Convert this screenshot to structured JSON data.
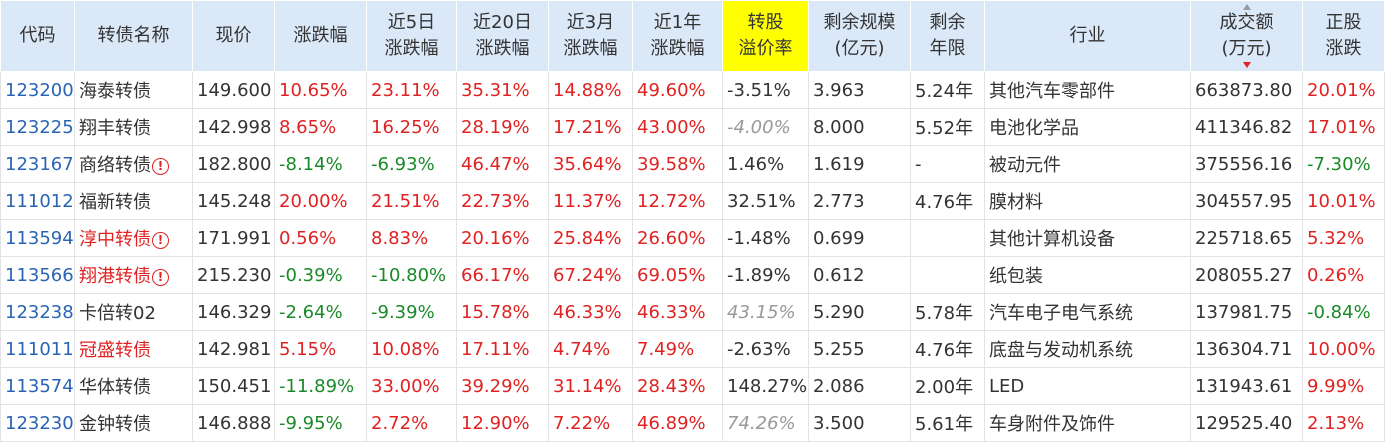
{
  "headers": [
    {
      "label": "代码"
    },
    {
      "label": "转债名称"
    },
    {
      "label": "现价"
    },
    {
      "label": "涨跌幅"
    },
    {
      "label": "近5日\n涨跌幅"
    },
    {
      "label": "近20日\n涨跌幅"
    },
    {
      "label": "近3月\n涨跌幅"
    },
    {
      "label": "近1年\n涨跌幅"
    },
    {
      "label": "转股\n溢价率",
      "highlight": true
    },
    {
      "label": "剩余规模\n(亿元)"
    },
    {
      "label": "剩余\n年限"
    },
    {
      "label": "行业"
    },
    {
      "label": "成交额\n(万元)",
      "sorted": "desc"
    },
    {
      "label": "正股\n涨跌"
    }
  ],
  "warn_icon": "!",
  "colors": {
    "up": "#e02222",
    "down": "#1a8a28",
    "code": "#2a64b4",
    "header_bg": "#dbe8f8",
    "highlight": "#ffff00"
  },
  "rows": [
    {
      "code": "123200",
      "name": "海泰转债",
      "price": "149.600",
      "chg": "10.65%",
      "chg5": "23.11%",
      "chg20": "35.31%",
      "chg3m": "14.88%",
      "chg1y": "49.60%",
      "premium": "-3.51%",
      "scale": "3.963",
      "years": "5.24年",
      "industry": "其他汽车零部件",
      "volume": "663873.80",
      "stock_chg": "20.01%"
    },
    {
      "code": "123225",
      "name": "翔丰转债",
      "price": "142.998",
      "chg": "8.65%",
      "chg5": "16.25%",
      "chg20": "28.19%",
      "chg3m": "17.21%",
      "chg1y": "43.00%",
      "premium": "-4.00%",
      "premium_gray": true,
      "scale": "8.000",
      "years": "5.52年",
      "industry": "电池化学品",
      "volume": "411346.82",
      "stock_chg": "17.01%"
    },
    {
      "code": "123167",
      "name": "商络转债",
      "warn": true,
      "price": "182.800",
      "chg": "-8.14%",
      "chg5": "-6.93%",
      "chg20": "46.47%",
      "chg3m": "35.64%",
      "chg1y": "39.58%",
      "premium": "1.46%",
      "scale": "1.619",
      "years": "-",
      "industry": "被动元件",
      "volume": "375556.16",
      "stock_chg": "-7.30%"
    },
    {
      "code": "111012",
      "name": "福新转债",
      "price": "145.248",
      "chg": "20.00%",
      "chg5": "21.51%",
      "chg20": "22.73%",
      "chg3m": "11.37%",
      "chg1y": "12.72%",
      "premium": "32.51%",
      "scale": "2.773",
      "years": "4.76年",
      "industry": "膜材料",
      "volume": "304557.95",
      "stock_chg": "10.01%"
    },
    {
      "code": "113594",
      "name": "淳中转债",
      "name_red": true,
      "warn": true,
      "price": "171.991",
      "chg": "0.56%",
      "chg5": "8.83%",
      "chg20": "20.16%",
      "chg3m": "25.84%",
      "chg1y": "26.60%",
      "premium": "-1.48%",
      "scale": "0.699",
      "years": "",
      "industry": "其他计算机设备",
      "volume": "225718.65",
      "stock_chg": "5.32%"
    },
    {
      "code": "113566",
      "name": "翔港转债",
      "name_red": true,
      "warn": true,
      "price": "215.230",
      "chg": "-0.39%",
      "chg5": "-10.80%",
      "chg20": "66.17%",
      "chg3m": "67.24%",
      "chg1y": "69.05%",
      "premium": "-1.89%",
      "scale": "0.612",
      "years": "",
      "industry": "纸包装",
      "volume": "208055.27",
      "stock_chg": "0.26%"
    },
    {
      "code": "123238",
      "name": "卡倍转02",
      "price": "146.329",
      "chg": "-2.64%",
      "chg5": "-9.39%",
      "chg20": "15.78%",
      "chg3m": "46.33%",
      "chg1y": "46.33%",
      "premium": "43.15%",
      "premium_gray": true,
      "scale": "5.290",
      "years": "5.78年",
      "industry": "汽车电子电气系统",
      "volume": "137981.75",
      "stock_chg": "-0.84%"
    },
    {
      "code": "111011",
      "name": "冠盛转债",
      "name_red": true,
      "price": "142.981",
      "chg": "5.15%",
      "chg5": "10.08%",
      "chg20": "17.11%",
      "chg3m": "4.74%",
      "chg1y": "7.49%",
      "premium": "-2.63%",
      "scale": "5.255",
      "years": "4.76年",
      "industry": "底盘与发动机系统",
      "volume": "136304.71",
      "stock_chg": "10.00%"
    },
    {
      "code": "113574",
      "name": "华体转债",
      "price": "150.451",
      "chg": "-11.89%",
      "chg5": "33.00%",
      "chg20": "39.29%",
      "chg3m": "31.14%",
      "chg1y": "28.43%",
      "premium": "148.27%",
      "scale": "2.086",
      "years": "2.00年",
      "industry": "LED",
      "volume": "131943.61",
      "stock_chg": "9.99%"
    },
    {
      "code": "123230",
      "name": "金钟转债",
      "price": "146.888",
      "chg": "-9.95%",
      "chg5": "2.72%",
      "chg20": "12.90%",
      "chg3m": "7.22%",
      "chg1y": "46.89%",
      "premium": "74.26%",
      "premium_gray": true,
      "scale": "3.500",
      "years": "5.61年",
      "industry": "车身附件及饰件",
      "volume": "129525.40",
      "stock_chg": "2.13%"
    }
  ]
}
